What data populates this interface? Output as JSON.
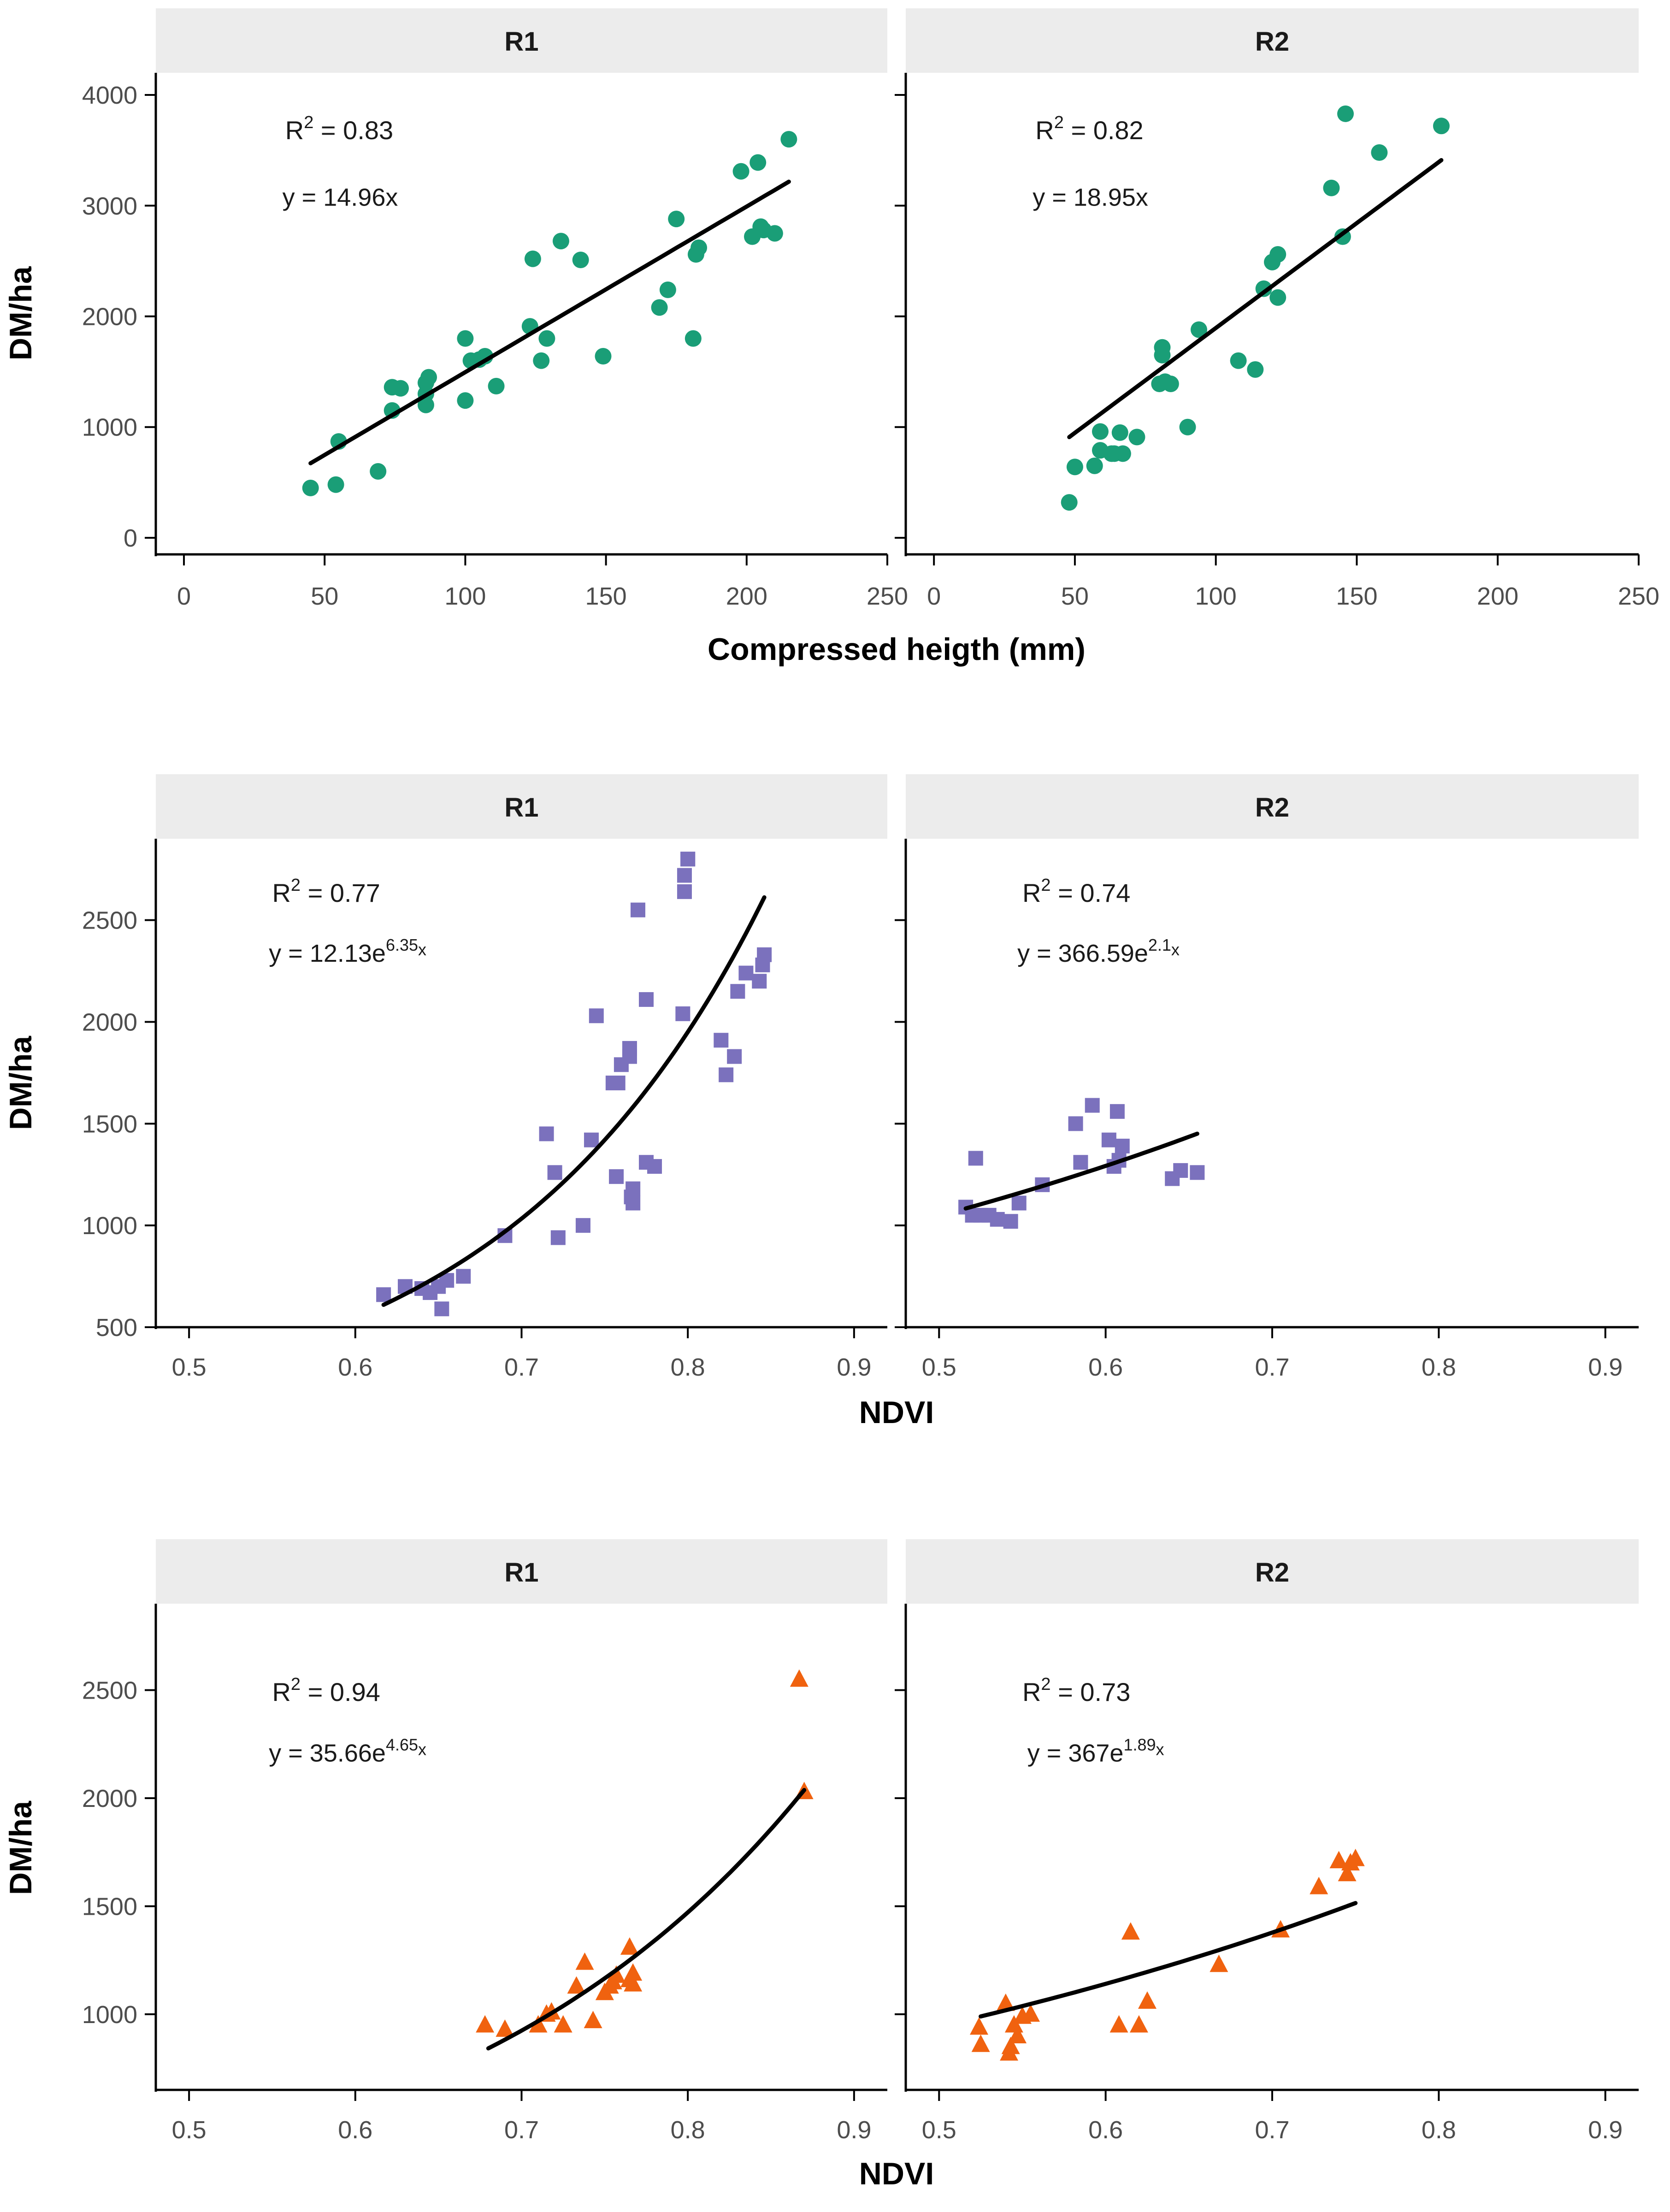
{
  "colors": {
    "strip_bg": "#ececec",
    "axis": "#000000",
    "fit_line": "#000000",
    "green": "#1a9e77",
    "purple": "#7b71bd",
    "orange": "#f0620f"
  },
  "chart_data": [
    {
      "type": "scatter",
      "marker": "circle",
      "color": "green",
      "ylabel": "DM/ha",
      "xlabel": "Compressed heigth (mm)",
      "xlim": [
        -10,
        250
      ],
      "ylim": [
        -150,
        4200
      ],
      "xticks": [
        0,
        50,
        100,
        150,
        200,
        250
      ],
      "xtick_labels": [
        "0",
        "50",
        "100",
        "150",
        "200",
        "250"
      ],
      "yticks": [
        0,
        1000,
        2000,
        3000,
        4000
      ],
      "ytick_labels": [
        "0",
        "1000",
        "2000",
        "3000",
        "4000"
      ],
      "panels": [
        {
          "strip": "R1",
          "r2_prefix": "R",
          "r2_sup": "2",
          "r2_value": " = 0.83",
          "eq_main": "y = 14.96x",
          "eq_sup": "",
          "eq_tail": "",
          "r2_pos": [
            36,
            3600
          ],
          "eq_pos": [
            35,
            3000
          ],
          "fit": {
            "model": "linear",
            "a": 14.96,
            "b": 0,
            "x_range": [
              45,
              215
            ]
          },
          "points": [
            [
              45,
              450
            ],
            [
              54,
              480
            ],
            [
              55,
              870
            ],
            [
              69,
              600
            ],
            [
              74,
              1150
            ],
            [
              74,
              1360
            ],
            [
              77,
              1350
            ],
            [
              86,
              1200
            ],
            [
              86,
              1300
            ],
            [
              86,
              1400
            ],
            [
              87,
              1450
            ],
            [
              100,
              1240
            ],
            [
              100,
              1800
            ],
            [
              102,
              1600
            ],
            [
              105,
              1610
            ],
            [
              107,
              1640
            ],
            [
              111,
              1370
            ],
            [
              123,
              1910
            ],
            [
              124,
              2520
            ],
            [
              127,
              1600
            ],
            [
              129,
              1800
            ],
            [
              134,
              2680
            ],
            [
              141,
              2510
            ],
            [
              149,
              1640
            ],
            [
              169,
              2080
            ],
            [
              172,
              2240
            ],
            [
              175,
              2880
            ],
            [
              181,
              1800
            ],
            [
              182,
              2560
            ],
            [
              183,
              2620
            ],
            [
              198,
              3310
            ],
            [
              202,
              2720
            ],
            [
              204,
              3390
            ],
            [
              205,
              2810
            ],
            [
              206,
              2780
            ],
            [
              210,
              2750
            ],
            [
              215,
              3600
            ]
          ]
        },
        {
          "strip": "R2",
          "r2_prefix": "R",
          "r2_sup": "2",
          "r2_value": " = 0.82",
          "eq_main": "y = 18.95x",
          "eq_sup": "",
          "eq_tail": "",
          "r2_pos": [
            36,
            3600
          ],
          "eq_pos": [
            35,
            3000
          ],
          "fit": {
            "model": "linear",
            "a": 18.95,
            "b": 0,
            "x_range": [
              48,
              180
            ]
          },
          "points": [
            [
              48,
              320
            ],
            [
              50,
              640
            ],
            [
              57,
              650
            ],
            [
              59,
              790
            ],
            [
              59,
              960
            ],
            [
              63,
              760
            ],
            [
              64,
              760
            ],
            [
              66,
              950
            ],
            [
              67,
              760
            ],
            [
              72,
              910
            ],
            [
              80,
              1390
            ],
            [
              81,
              1650
            ],
            [
              81,
              1720
            ],
            [
              82,
              1410
            ],
            [
              84,
              1390
            ],
            [
              90,
              1000
            ],
            [
              94,
              1880
            ],
            [
              108,
              1600
            ],
            [
              114,
              1520
            ],
            [
              117,
              2250
            ],
            [
              120,
              2490
            ],
            [
              122,
              2170
            ],
            [
              122,
              2560
            ],
            [
              141,
              3160
            ],
            [
              145,
              2720
            ],
            [
              146,
              3830
            ],
            [
              158,
              3480
            ],
            [
              180,
              3720
            ]
          ]
        }
      ]
    },
    {
      "type": "scatter",
      "marker": "square",
      "color": "purple",
      "ylabel": "DM/ha",
      "xlabel": "NDVI",
      "xlim": [
        0.48,
        0.92
      ],
      "ylim": [
        500,
        2900
      ],
      "xticks": [
        0.5,
        0.6,
        0.7,
        0.8,
        0.9
      ],
      "xtick_labels": [
        "0.5",
        "0.6",
        "0.7",
        "0.8",
        "0.9"
      ],
      "yticks": [
        500,
        1000,
        1500,
        2000,
        2500
      ],
      "ytick_labels": [
        "500",
        "1000",
        "1500",
        "2000",
        "2500"
      ],
      "panels": [
        {
          "strip": "R1",
          "r2_prefix": "R",
          "r2_sup": "2",
          "r2_value": " = 0.77",
          "eq_main": "y = 12.13e",
          "eq_sup": "6.35",
          "eq_tail": "x",
          "r2_pos": [
            0.55,
            2590
          ],
          "eq_pos": [
            0.548,
            2295
          ],
          "fit": {
            "model": "exp",
            "a": 12.13,
            "b": 6.35,
            "x_range": [
              0.617,
              0.846
            ]
          },
          "points": [
            [
              0.617,
              660
            ],
            [
              0.63,
              700
            ],
            [
              0.64,
              690
            ],
            [
              0.645,
              670
            ],
            [
              0.65,
              700
            ],
            [
              0.652,
              590
            ],
            [
              0.655,
              730
            ],
            [
              0.665,
              750
            ],
            [
              0.69,
              950
            ],
            [
              0.715,
              1450
            ],
            [
              0.72,
              1260
            ],
            [
              0.722,
              940
            ],
            [
              0.737,
              1000
            ],
            [
              0.742,
              1420
            ],
            [
              0.745,
              2030
            ],
            [
              0.755,
              1700
            ],
            [
              0.757,
              1240
            ],
            [
              0.758,
              1700
            ],
            [
              0.76,
              1790
            ],
            [
              0.765,
              1870
            ],
            [
              0.765,
              1830
            ],
            [
              0.766,
              1140
            ],
            [
              0.767,
              1110
            ],
            [
              0.767,
              1180
            ],
            [
              0.77,
              2550
            ],
            [
              0.775,
              2110
            ],
            [
              0.775,
              1310
            ],
            [
              0.78,
              1290
            ],
            [
              0.797,
              2040
            ],
            [
              0.798,
              2640
            ],
            [
              0.798,
              2720
            ],
            [
              0.8,
              2800
            ],
            [
              0.8,
              2800
            ],
            [
              0.82,
              1910
            ],
            [
              0.823,
              1740
            ],
            [
              0.828,
              1830
            ],
            [
              0.83,
              2150
            ],
            [
              0.835,
              2240
            ],
            [
              0.843,
              2200
            ],
            [
              0.845,
              2280
            ],
            [
              0.846,
              2330
            ]
          ]
        },
        {
          "strip": "R2",
          "r2_prefix": "R",
          "r2_sup": "2",
          "r2_value": " = 0.74",
          "eq_main": "y = 366.59e",
          "eq_sup": "2.1",
          "eq_tail": "x",
          "r2_pos": [
            0.55,
            2590
          ],
          "eq_pos": [
            0.547,
            2295
          ],
          "fit": {
            "model": "exp",
            "a": 366.59,
            "b": 2.1,
            "x_range": [
              0.516,
              0.655
            ]
          },
          "points": [
            [
              0.516,
              1090
            ],
            [
              0.52,
              1050
            ],
            [
              0.522,
              1330
            ],
            [
              0.525,
              1050
            ],
            [
              0.53,
              1050
            ],
            [
              0.535,
              1030
            ],
            [
              0.543,
              1020
            ],
            [
              0.548,
              1110
            ],
            [
              0.562,
              1200
            ],
            [
              0.582,
              1500
            ],
            [
              0.585,
              1310
            ],
            [
              0.592,
              1590
            ],
            [
              0.602,
              1420
            ],
            [
              0.605,
              1290
            ],
            [
              0.607,
              1560
            ],
            [
              0.608,
              1320
            ],
            [
              0.61,
              1390
            ],
            [
              0.64,
              1230
            ],
            [
              0.645,
              1270
            ],
            [
              0.655,
              1260
            ]
          ]
        }
      ]
    },
    {
      "type": "scatter",
      "marker": "triangle",
      "color": "orange",
      "ylabel": "DM/ha",
      "xlabel": "NDVI",
      "xlim": [
        0.48,
        0.92
      ],
      "ylim": [
        650,
        2900
      ],
      "xticks": [
        0.5,
        0.6,
        0.7,
        0.8,
        0.9
      ],
      "xtick_labels": [
        "0.5",
        "0.6",
        "0.7",
        "0.8",
        "0.9"
      ],
      "yticks": [
        1000,
        1500,
        2000,
        2500
      ],
      "ytick_labels": [
        "1000",
        "1500",
        "2000",
        "2500"
      ],
      "panels": [
        {
          "strip": "R1",
          "r2_prefix": "R",
          "r2_sup": "2",
          "r2_value": " = 0.94",
          "eq_main": "y = 35.66e",
          "eq_sup": "4.65",
          "eq_tail": "x",
          "r2_pos": [
            0.55,
            2450
          ],
          "eq_pos": [
            0.548,
            2170
          ],
          "fit": {
            "model": "exp",
            "a": 35.66,
            "b": 4.65,
            "x_range": [
              0.68,
              0.87
            ]
          },
          "points": [
            [
              0.678,
              950
            ],
            [
              0.69,
              930
            ],
            [
              0.71,
              950
            ],
            [
              0.715,
              1000
            ],
            [
              0.718,
              1010
            ],
            [
              0.725,
              950
            ],
            [
              0.733,
              1130
            ],
            [
              0.738,
              1240
            ],
            [
              0.743,
              970
            ],
            [
              0.75,
              1100
            ],
            [
              0.753,
              1130
            ],
            [
              0.755,
              1150
            ],
            [
              0.757,
              1180
            ],
            [
              0.765,
              1160
            ],
            [
              0.765,
              1310
            ],
            [
              0.767,
              1190
            ],
            [
              0.767,
              1140
            ],
            [
              0.867,
              2550
            ],
            [
              0.87,
              2030
            ]
          ]
        },
        {
          "strip": "R2",
          "r2_prefix": "R",
          "r2_sup": "2",
          "r2_value": " = 0.73",
          "eq_main": "y = 367e",
          "eq_sup": "1.89",
          "eq_tail": "x",
          "r2_pos": [
            0.55,
            2450
          ],
          "eq_pos": [
            0.553,
            2170
          ],
          "fit": {
            "model": "exp",
            "a": 367,
            "b": 1.89,
            "x_range": [
              0.525,
              0.75
            ]
          },
          "points": [
            [
              0.524,
              940
            ],
            [
              0.525,
              860
            ],
            [
              0.54,
              1050
            ],
            [
              0.542,
              820
            ],
            [
              0.543,
              850
            ],
            [
              0.545,
              950
            ],
            [
              0.547,
              900
            ],
            [
              0.55,
              990
            ],
            [
              0.555,
              1000
            ],
            [
              0.608,
              950
            ],
            [
              0.615,
              1380
            ],
            [
              0.62,
              950
            ],
            [
              0.625,
              1060
            ],
            [
              0.668,
              1230
            ],
            [
              0.705,
              1390
            ],
            [
              0.728,
              1590
            ],
            [
              0.74,
              1710
            ],
            [
              0.745,
              1650
            ],
            [
              0.747,
              1700
            ],
            [
              0.75,
              1720
            ]
          ]
        }
      ]
    }
  ]
}
